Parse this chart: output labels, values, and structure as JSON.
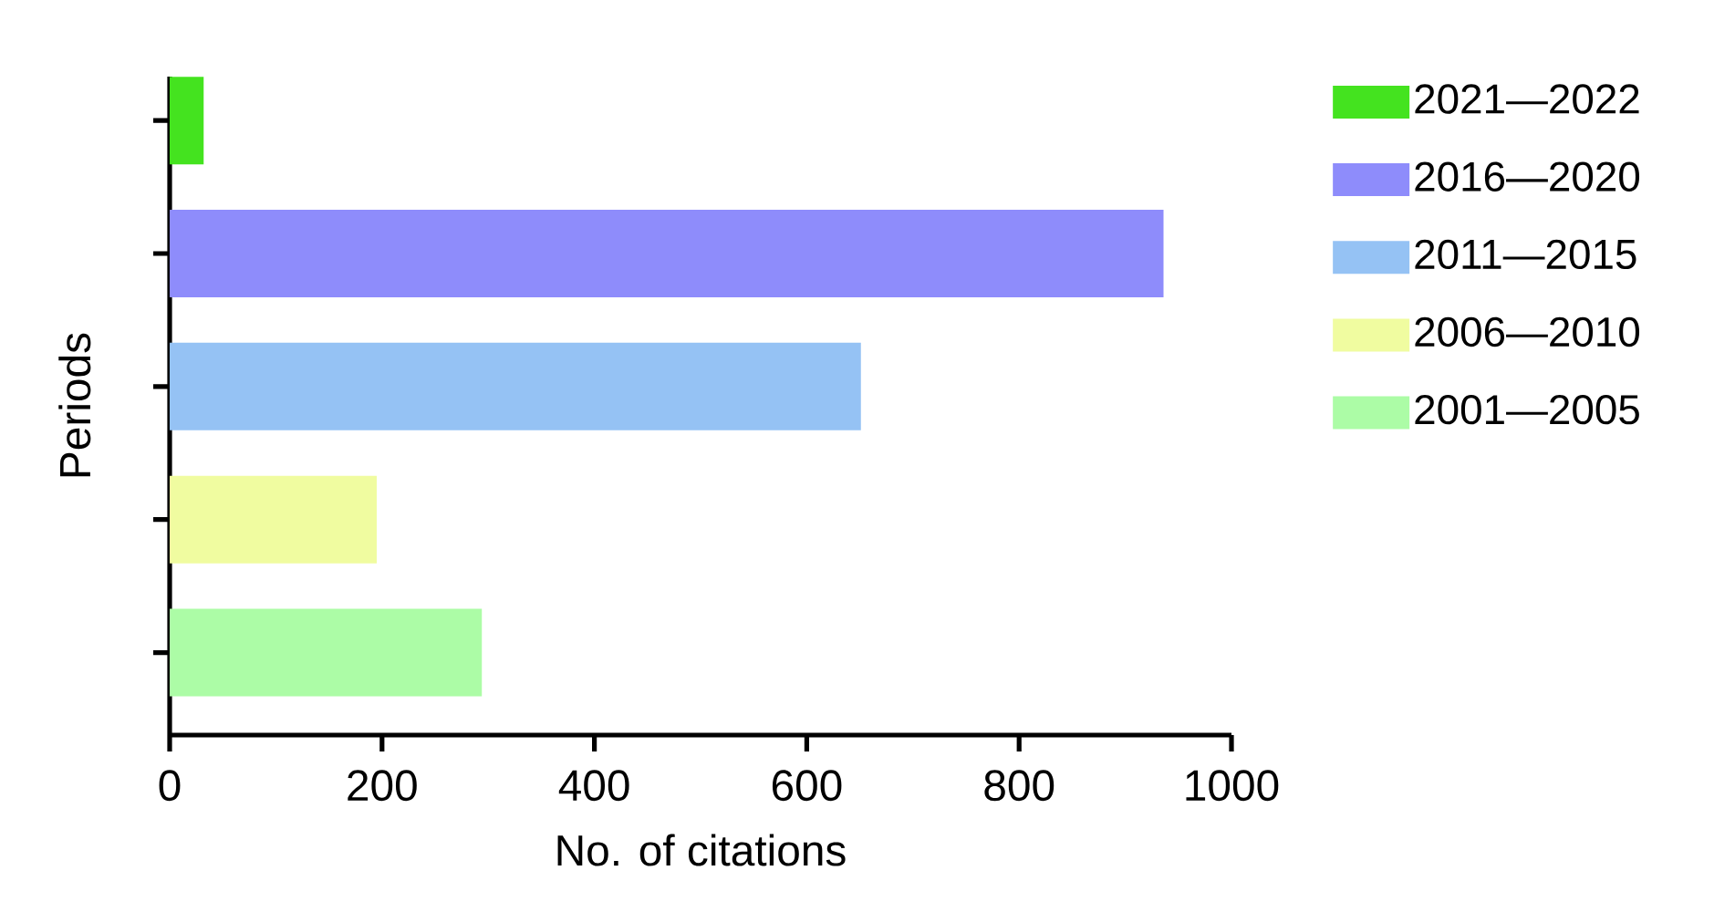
{
  "chart_data": {
    "type": "bar",
    "orientation": "horizontal",
    "categories": [
      null,
      null,
      null,
      null,
      null
    ],
    "series": [
      {
        "name": "2021—2022",
        "color": "#44e31f",
        "values": [
          32,
          null,
          null,
          null,
          null
        ]
      },
      {
        "name": "2016—2020",
        "color": "#8e8cfb",
        "values": [
          null,
          936,
          null,
          null,
          null
        ]
      },
      {
        "name": "2011—2015",
        "color": "#95c2f4",
        "values": [
          null,
          null,
          651,
          null,
          null
        ]
      },
      {
        "name": "2006—2010",
        "color": "#f0fca0",
        "values": [
          null,
          null,
          null,
          195,
          null
        ]
      },
      {
        "name": "2001—2005",
        "color": "#acfca6",
        "values": [
          null,
          null,
          null,
          null,
          294
        ]
      }
    ],
    "xlabel": "No. of citations",
    "ylabel": "Periods",
    "xlim": [
      0,
      1000
    ],
    "xticks": [
      0,
      200,
      400,
      600,
      800,
      1000
    ],
    "legend": "top right"
  }
}
